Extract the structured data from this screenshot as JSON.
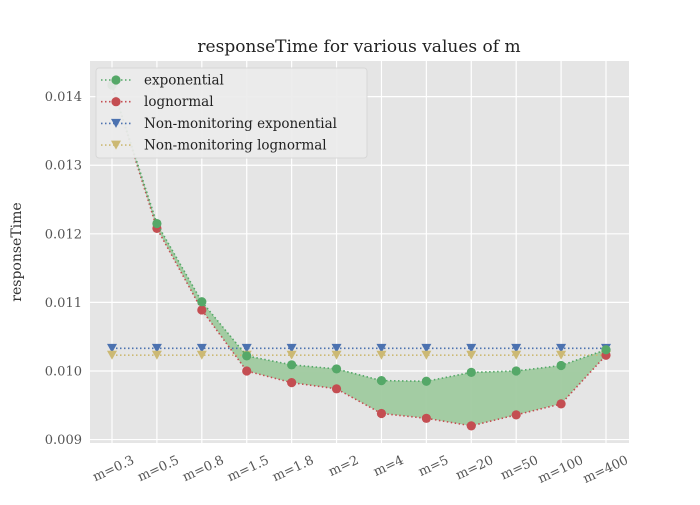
{
  "chart_data": {
    "type": "line",
    "title": "responseTime for various values of m",
    "xlabel": "",
    "ylabel": "responseTime",
    "categories": [
      "m=0.3",
      "m=0.5",
      "m=0.8",
      "m=1.5",
      "m=1.8",
      "m=2",
      "m=4",
      "m=5",
      "m=20",
      "m=50",
      "m=100",
      "m=400"
    ],
    "ylim": [
      0.00895,
      0.01452
    ],
    "yticks": [
      0.009,
      0.01,
      0.011,
      0.012,
      0.013,
      0.014
    ],
    "ytick_labels": [
      "0.009",
      "0.010",
      "0.011",
      "0.012",
      "0.013",
      "0.014"
    ],
    "grid": true,
    "legend_position": "top-left",
    "fill_between": {
      "series": [
        "exponential",
        "lognormal"
      ],
      "color": "#9fca9f"
    },
    "series": [
      {
        "name": "exponential",
        "color": "#55a868",
        "marker": "circle",
        "linestyle": "dotted",
        "values": [
          0.01417,
          0.01215,
          0.01101,
          0.01022,
          0.01009,
          0.01003,
          0.00986,
          0.00985,
          0.00998,
          0.01,
          0.01008,
          0.01031
        ]
      },
      {
        "name": "lognormal",
        "color": "#c44e52",
        "marker": "circle",
        "linestyle": "dotted",
        "values": [
          0.01417,
          0.01208,
          0.01089,
          0.01,
          0.00983,
          0.00974,
          0.00938,
          0.00931,
          0.0092,
          0.00936,
          0.00952,
          0.01023
        ]
      },
      {
        "name": "Non-monitoring exponential",
        "color": "#4c72b0",
        "marker": "triangle-down",
        "linestyle": "dotted",
        "values": [
          0.01033,
          0.01033,
          0.01033,
          0.01033,
          0.01033,
          0.01033,
          0.01033,
          0.01033,
          0.01033,
          0.01033,
          0.01033,
          0.01033
        ]
      },
      {
        "name": "Non-monitoring lognormal",
        "color": "#ccb974",
        "marker": "triangle-down",
        "linestyle": "dotted",
        "values": [
          0.01023,
          0.01023,
          0.01023,
          0.01023,
          0.01023,
          0.01023,
          0.01023,
          0.01023,
          0.01023,
          0.01023,
          0.01023,
          0.01023
        ]
      }
    ]
  }
}
